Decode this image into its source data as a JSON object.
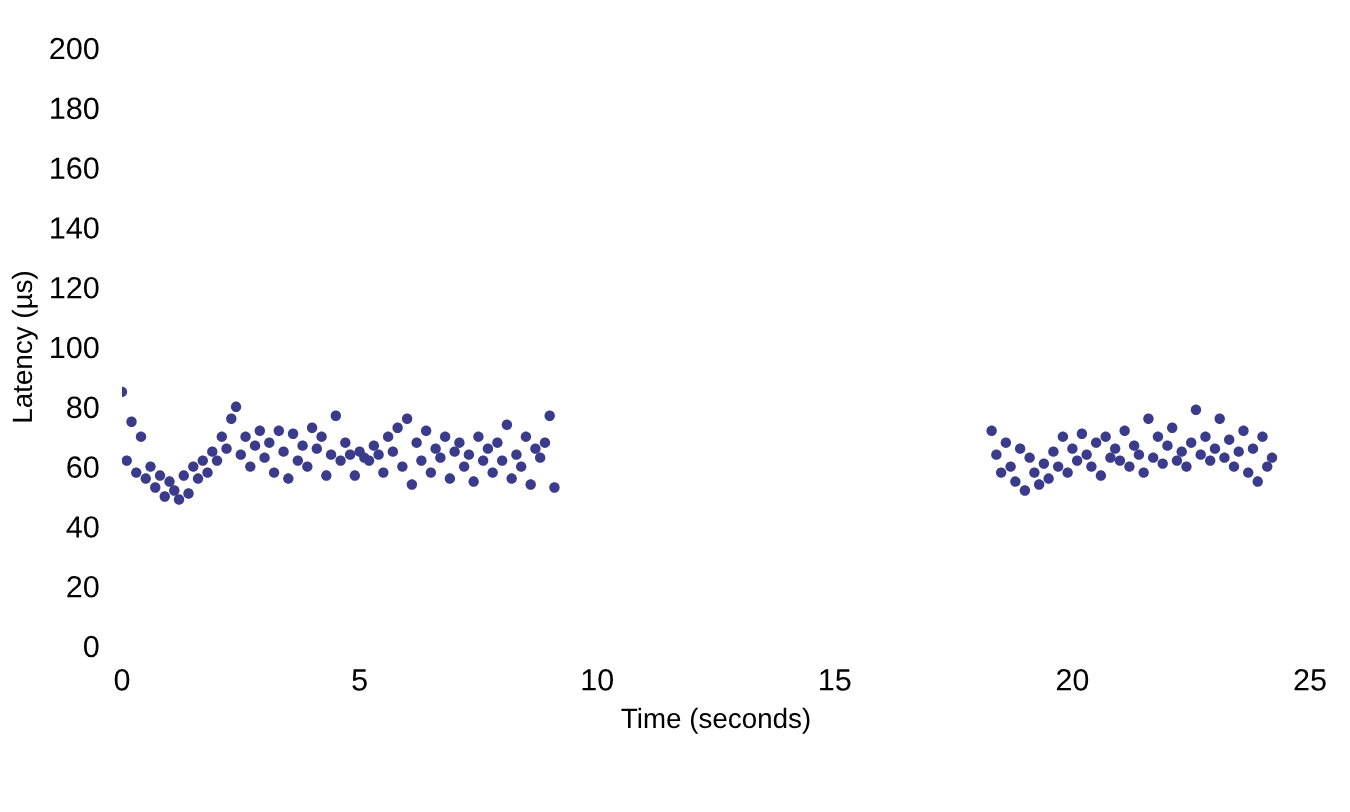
{
  "chart_data": {
    "type": "scatter",
    "xlabel": "Time (seconds)",
    "ylabel": "Latency (µs)",
    "xlim": [
      0,
      25
    ],
    "xticks": [
      0,
      5,
      10,
      15,
      20,
      25
    ],
    "ylim": [
      0,
      200
    ],
    "yticks": [
      0,
      20,
      40,
      60,
      80,
      100,
      120,
      140,
      160,
      180,
      200
    ],
    "grid": false,
    "marker": "circle",
    "series": [
      {
        "color": "#3b3b8c",
        "x": [
          0.0,
          0.1,
          0.2,
          0.3,
          0.4,
          0.5,
          0.6,
          0.7,
          0.8,
          0.9,
          1.0,
          1.1,
          1.2,
          1.3,
          1.4,
          1.5,
          1.6,
          1.7,
          1.8,
          1.9,
          2.0,
          2.1,
          2.2,
          2.3,
          2.4,
          2.5,
          2.6,
          2.7,
          2.8,
          2.9,
          3.0,
          3.1,
          3.2,
          3.3,
          3.4,
          3.5,
          3.6,
          3.7,
          3.8,
          3.9,
          4.0,
          4.1,
          4.2,
          4.3,
          4.4,
          4.5,
          4.6,
          4.7,
          4.8,
          4.9,
          5.0,
          5.1,
          5.2,
          5.3,
          5.4,
          5.5,
          5.6,
          5.7,
          5.8,
          5.9,
          6.0,
          6.1,
          6.2,
          6.3,
          6.4,
          6.5,
          6.6,
          6.7,
          6.8,
          6.9,
          7.0,
          7.1,
          7.2,
          7.3,
          7.4,
          7.5,
          7.6,
          7.7,
          7.8,
          7.9,
          8.0,
          8.1,
          8.2,
          8.3,
          8.4,
          8.5,
          8.6,
          8.7,
          8.8,
          8.9,
          9.0,
          9.1,
          18.3,
          18.4,
          18.5,
          18.6,
          18.7,
          18.8,
          18.9,
          19.0,
          19.1,
          19.2,
          19.3,
          19.4,
          19.5,
          19.6,
          19.7,
          19.8,
          19.9,
          20.0,
          20.1,
          20.2,
          20.3,
          20.4,
          20.5,
          20.6,
          20.7,
          20.8,
          20.9,
          21.0,
          21.1,
          21.2,
          21.3,
          21.4,
          21.5,
          21.6,
          21.7,
          21.8,
          21.9,
          22.0,
          22.1,
          22.2,
          22.3,
          22.4,
          22.5,
          22.6,
          22.7,
          22.8,
          22.9,
          23.0,
          23.1,
          23.2,
          23.3,
          23.4,
          23.5,
          23.6,
          23.7,
          23.8,
          23.9,
          24.0,
          24.1,
          24.2
        ],
        "values": [
          85,
          62,
          75,
          58,
          70,
          56,
          60,
          53,
          57,
          50,
          55,
          52,
          49,
          57,
          51,
          60,
          56,
          62,
          58,
          65,
          62,
          70,
          66,
          76,
          80,
          64,
          70,
          60,
          67,
          72,
          63,
          68,
          58,
          72,
          65,
          56,
          71,
          62,
          67,
          60,
          73,
          66,
          70,
          57,
          64,
          77,
          62,
          68,
          64,
          57,
          65,
          63,
          62,
          67,
          64,
          58,
          70,
          65,
          73,
          60,
          76,
          54,
          68,
          62,
          72,
          58,
          66,
          63,
          70,
          56,
          65,
          68,
          60,
          64,
          55,
          70,
          62,
          66,
          58,
          68,
          62,
          74,
          56,
          64,
          60,
          70,
          54,
          66,
          63,
          68,
          77,
          53,
          72,
          64,
          58,
          68,
          60,
          55,
          66,
          52,
          63,
          58,
          54,
          61,
          56,
          65,
          60,
          70,
          58,
          66,
          62,
          71,
          64,
          60,
          68,
          57,
          70,
          63,
          66,
          62,
          72,
          60,
          67,
          64,
          58,
          76,
          63,
          70,
          61,
          67,
          73,
          62,
          65,
          60,
          68,
          79,
          64,
          70,
          62,
          66,
          76,
          63,
          69,
          60,
          65,
          72,
          58,
          66,
          55,
          70,
          60,
          63
        ]
      }
    ]
  }
}
